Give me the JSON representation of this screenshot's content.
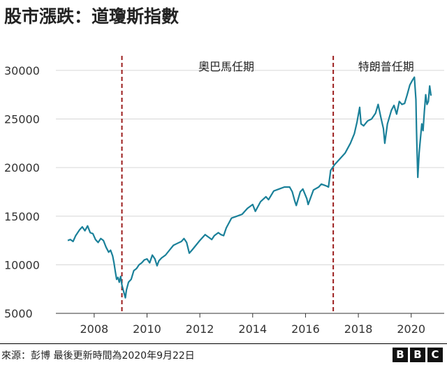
{
  "title": "股市漲跌：道瓊斯指數",
  "source": "來源：彭博 最後更新時間為2020年9月22日",
  "logo": [
    "B",
    "B",
    "C"
  ],
  "chart_data": {
    "type": "line",
    "title": "股市漲跌：道瓊斯指數",
    "xlabel": "",
    "ylabel": "",
    "xlim": [
      2006.55,
      2021.25
    ],
    "ylim": [
      5000,
      31500
    ],
    "x_ticks": [
      2008,
      2010,
      2012,
      2014,
      2016,
      2018,
      2020
    ],
    "x_tick_labels": [
      "2008",
      "2010",
      "2012",
      "2014",
      "2016",
      "2018",
      "2020"
    ],
    "y_ticks": [
      5000,
      10000,
      15000,
      20000,
      25000,
      30000
    ],
    "y_tick_labels": [
      "5000",
      "10000",
      "15000",
      "20000",
      "25000",
      "30000"
    ],
    "grid": "horizontal",
    "line_color": "#1a8099",
    "series": [
      {
        "x": [
          2007.0,
          2007.1,
          2007.2,
          2007.3,
          2007.45,
          2007.55,
          2007.65,
          2007.75,
          2007.85,
          2007.95,
          2008.05,
          2008.15,
          2008.25,
          2008.35,
          2008.45,
          2008.55,
          2008.62,
          2008.7,
          2008.75,
          2008.8,
          2008.85,
          2008.9,
          2008.95,
          2009.0,
          2009.05,
          2009.12,
          2009.18,
          2009.22,
          2009.3,
          2009.4,
          2009.5,
          2009.6,
          2009.7,
          2009.8,
          2009.9,
          2010.0,
          2010.1,
          2010.2,
          2010.3,
          2010.38,
          2010.45,
          2010.55,
          2010.7,
          2010.85,
          2011.0,
          2011.15,
          2011.3,
          2011.4,
          2011.5,
          2011.6,
          2011.7,
          2011.85,
          2012.0,
          2012.2,
          2012.35,
          2012.45,
          2012.55,
          2012.7,
          2012.8,
          2012.9,
          2013.0,
          2013.2,
          2013.4,
          2013.6,
          2013.8,
          2014.0,
          2014.1,
          2014.3,
          2014.5,
          2014.6,
          2014.8,
          2015.0,
          2015.2,
          2015.4,
          2015.5,
          2015.6,
          2015.65,
          2015.8,
          2015.9,
          2016.05,
          2016.1,
          2016.3,
          2016.5,
          2016.6,
          2016.7,
          2016.8,
          2016.87,
          2016.95,
          2017.1,
          2017.3,
          2017.5,
          2017.7,
          2017.85,
          2017.95,
          2018.05,
          2018.1,
          2018.2,
          2018.35,
          2018.5,
          2018.65,
          2018.75,
          2018.85,
          2018.95,
          2019.0,
          2019.1,
          2019.25,
          2019.35,
          2019.45,
          2019.55,
          2019.65,
          2019.75,
          2019.85,
          2019.95,
          2020.05,
          2020.12,
          2020.18,
          2020.2,
          2020.22,
          2020.25,
          2020.3,
          2020.4,
          2020.45,
          2020.5,
          2020.55,
          2020.6,
          2020.65,
          2020.7,
          2020.75
        ],
        "y": [
          12500,
          12600,
          12400,
          13000,
          13600,
          13900,
          13500,
          14000,
          13300,
          13200,
          12600,
          12300,
          12700,
          12500,
          11800,
          11300,
          11500,
          10900,
          10200,
          9300,
          8500,
          8700,
          8200,
          8800,
          7900,
          7200,
          6600,
          7400,
          8200,
          8500,
          9400,
          9600,
          10000,
          10200,
          10500,
          10600,
          10200,
          11000,
          10600,
          9900,
          10400,
          10700,
          11000,
          11500,
          12000,
          12200,
          12400,
          12700,
          12300,
          11200,
          11500,
          12000,
          12500,
          13100,
          12800,
          12600,
          13000,
          13300,
          13100,
          13000,
          13800,
          14800,
          15000,
          15200,
          15800,
          16200,
          15500,
          16500,
          17000,
          16700,
          17600,
          17800,
          18000,
          18000,
          17500,
          16500,
          16100,
          17500,
          17800,
          16800,
          16200,
          17700,
          18000,
          18300,
          18200,
          18100,
          18000,
          19700,
          20300,
          20900,
          21500,
          22500,
          23500,
          24700,
          26200,
          24500,
          24300,
          24800,
          25000,
          25600,
          26500,
          25200,
          24000,
          22500,
          24500,
          25900,
          26400,
          25500,
          26800,
          26500,
          26600,
          27500,
          28500,
          29000,
          29300,
          27000,
          24000,
          22000,
          19000,
          21500,
          24500,
          23800,
          25800,
          27500,
          26500,
          26800,
          28400,
          27400
        ]
      }
    ],
    "annotations": [
      {
        "x": 2009.05,
        "text": "奧巴馬任期",
        "text_x": 2013.0
      },
      {
        "x": 2017.05,
        "text": "特朗普任期",
        "text_x": 2019.05
      }
    ]
  }
}
